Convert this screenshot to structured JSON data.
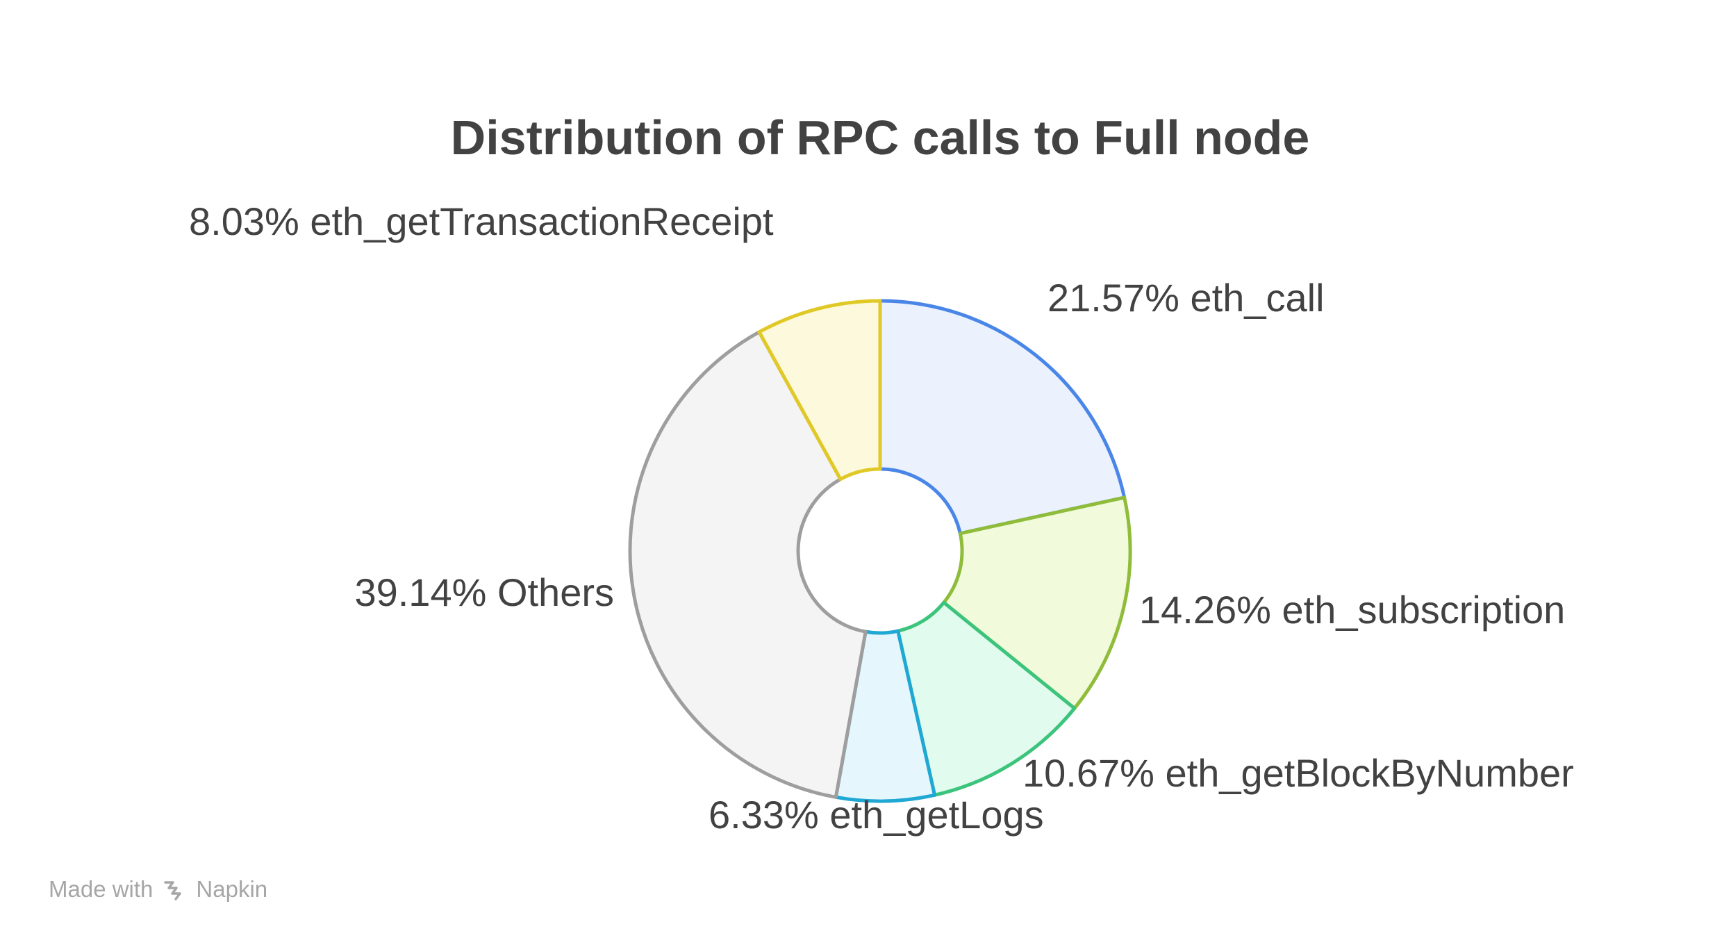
{
  "chart_data": {
    "type": "pie",
    "title": "Distribution of RPC calls to Full node",
    "slices": [
      {
        "label": "21.57% eth_call",
        "name": "eth_call",
        "value": 21.57,
        "stroke": "#4a86e8",
        "fill": "#ebf2fd"
      },
      {
        "label": "14.26% eth_subscription",
        "name": "eth_subscription",
        "value": 14.26,
        "stroke": "#8fbc3a",
        "fill": "#f1fadb"
      },
      {
        "label": "10.67% eth_getBlockByNumber",
        "name": "eth_getBlockByNumber",
        "value": 10.67,
        "stroke": "#3cc47c",
        "fill": "#e1fbee"
      },
      {
        "label": "6.33% eth_getLogs",
        "name": "eth_getLogs",
        "value": 6.33,
        "stroke": "#1fa8d4",
        "fill": "#e5f6fc"
      },
      {
        "label": "39.14% Others",
        "name": "Others",
        "value": 39.14,
        "stroke": "#9e9e9e",
        "fill": "#f4f4f4"
      },
      {
        "label": "8.03% eth_getTransactionReceipt",
        "name": "eth_getTransactionReceipt",
        "value": 8.03,
        "stroke": "#e0c926",
        "fill": "#fdf9dc"
      }
    ]
  },
  "watermark": {
    "made_with": "Made with",
    "brand": "Napkin",
    "icon": "napkin-logo-icon"
  }
}
